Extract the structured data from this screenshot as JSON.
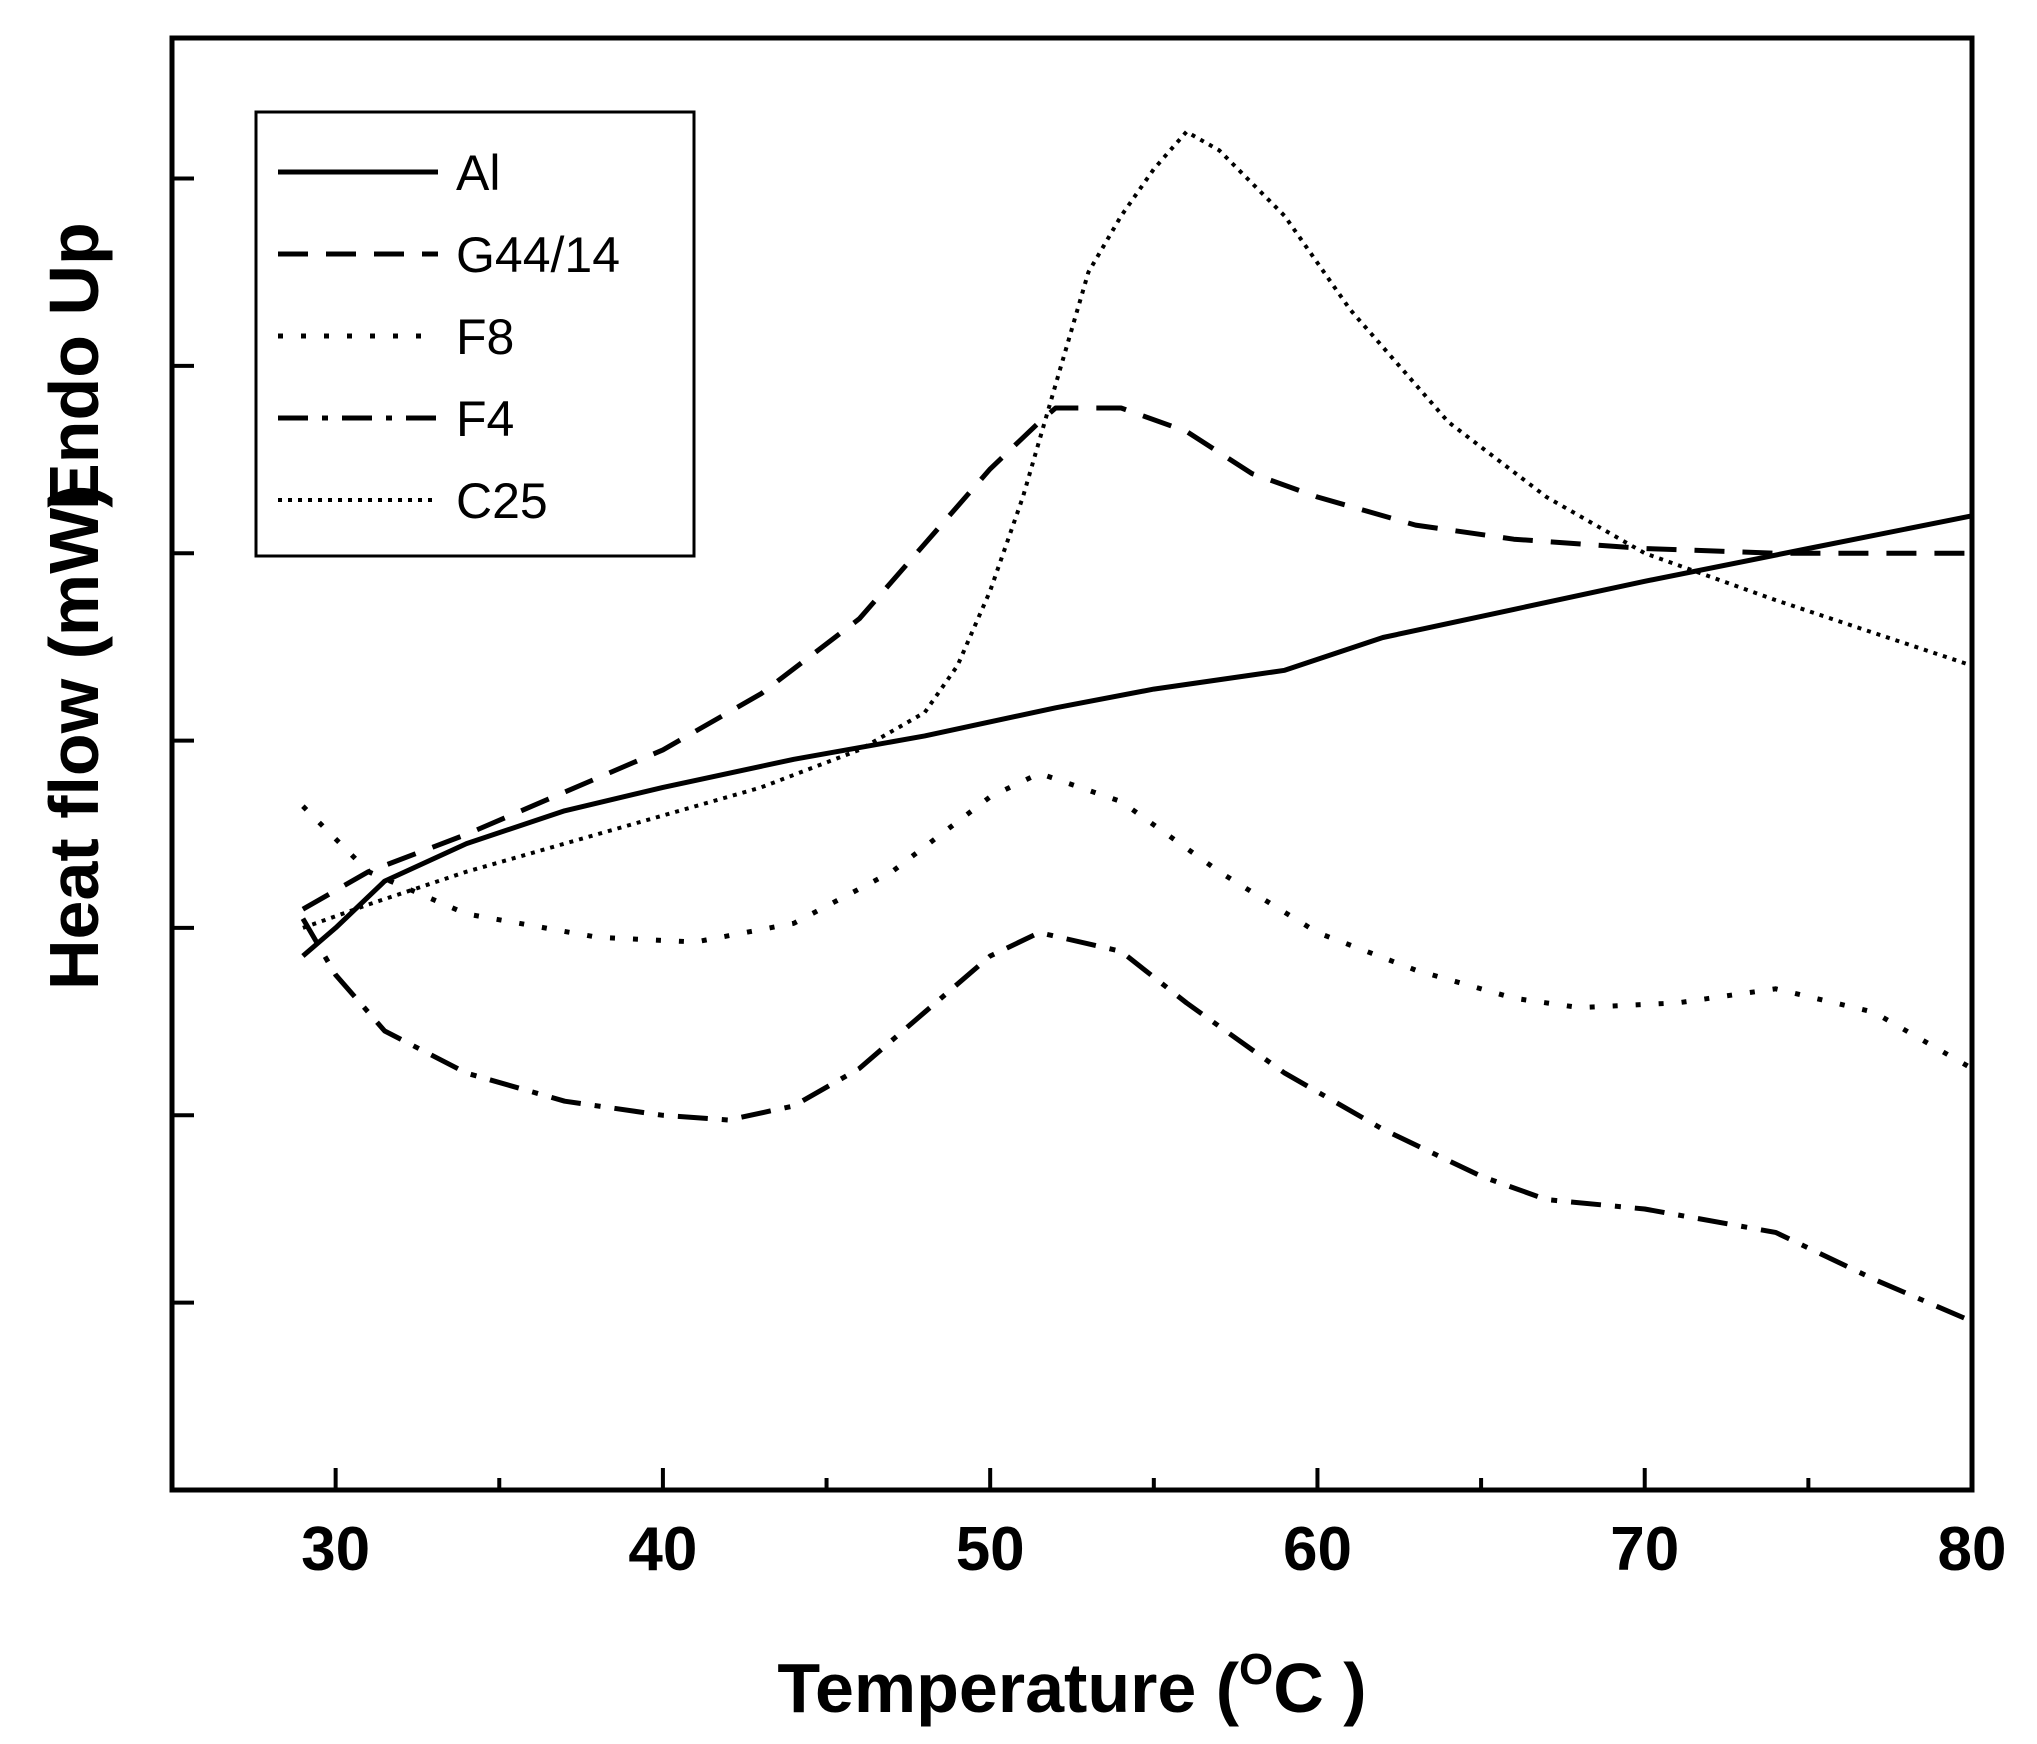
{
  "chart_data": {
    "type": "line",
    "title": "",
    "xlabel": "Temperature (",
    "xlabel_sup": "O",
    "xlabel_unit": "C )",
    "ylabel": "Heat flow  (mW)",
    "ylabel_top": "Endo Up",
    "xlim": [
      25,
      80
    ],
    "ylim": [
      0,
      15.5
    ],
    "xticks": [
      30,
      40,
      50,
      60,
      70,
      80
    ],
    "xticklabels": [
      "30",
      "40",
      "50",
      "60",
      "70",
      "80"
    ],
    "yticks": [
      2,
      4,
      6,
      8,
      10,
      12,
      14
    ],
    "yticklabels": [],
    "grid": false,
    "legend": {
      "position": "top-left",
      "entries": [
        "Al",
        "G44/14",
        "F8",
        "F4",
        "C25"
      ]
    },
    "series": [
      {
        "name": "Al",
        "style": "solid",
        "x": [
          29,
          30,
          31.5,
          34,
          37,
          40,
          44,
          48,
          52,
          55,
          58,
          59,
          62,
          66,
          70,
          75,
          80
        ],
        "y": [
          5.7,
          6.0,
          6.5,
          6.9,
          7.25,
          7.5,
          7.8,
          8.05,
          8.35,
          8.55,
          8.7,
          8.75,
          9.1,
          9.4,
          9.7,
          10.05,
          10.4
        ]
      },
      {
        "name": "G44/14",
        "style": "dashed",
        "x": [
          29,
          31,
          34,
          37,
          40,
          43,
          46,
          48,
          50,
          51.5,
          52,
          54,
          56,
          58,
          60,
          63,
          66,
          70,
          74,
          80
        ],
        "y": [
          6.2,
          6.6,
          7.0,
          7.45,
          7.9,
          8.5,
          9.3,
          10.1,
          10.9,
          11.4,
          11.55,
          11.55,
          11.3,
          10.85,
          10.6,
          10.3,
          10.15,
          10.05,
          10.0,
          10.0
        ]
      },
      {
        "name": "F8",
        "style": "dotted",
        "x": [
          29,
          31,
          34,
          38,
          41,
          44,
          47,
          50,
          51.5,
          54,
          57,
          60,
          63,
          66,
          68,
          71,
          74,
          77,
          80
        ],
        "y": [
          7.3,
          6.6,
          6.15,
          5.9,
          5.85,
          6.05,
          6.6,
          7.4,
          7.65,
          7.35,
          6.6,
          5.95,
          5.55,
          5.25,
          5.15,
          5.2,
          5.35,
          5.1,
          4.5
        ]
      },
      {
        "name": "F4",
        "style": "dashdot",
        "x": [
          29,
          30,
          31.5,
          34,
          37,
          40,
          42,
          44,
          46,
          48,
          50,
          51.5,
          54,
          56,
          59,
          62,
          65,
          67,
          70,
          74,
          77,
          80
        ],
        "y": [
          6.1,
          5.5,
          4.9,
          4.45,
          4.15,
          4.0,
          3.95,
          4.1,
          4.5,
          5.1,
          5.7,
          5.95,
          5.75,
          5.2,
          4.45,
          3.85,
          3.35,
          3.1,
          3.0,
          2.75,
          2.25,
          1.8
        ]
      },
      {
        "name": "C25",
        "style": "densedot",
        "x": [
          29,
          31,
          34,
          37,
          40,
          43,
          46,
          48,
          49,
          50,
          51,
          52,
          53,
          54,
          55,
          56,
          57,
          59,
          61,
          64,
          67,
          70,
          74,
          77,
          80
        ],
        "y": [
          6.0,
          6.25,
          6.6,
          6.9,
          7.2,
          7.5,
          7.9,
          8.3,
          8.8,
          9.6,
          10.6,
          11.8,
          13.0,
          13.6,
          14.1,
          14.5,
          14.3,
          13.6,
          12.6,
          11.4,
          10.6,
          10.0,
          9.5,
          9.15,
          8.8
        ]
      }
    ]
  }
}
